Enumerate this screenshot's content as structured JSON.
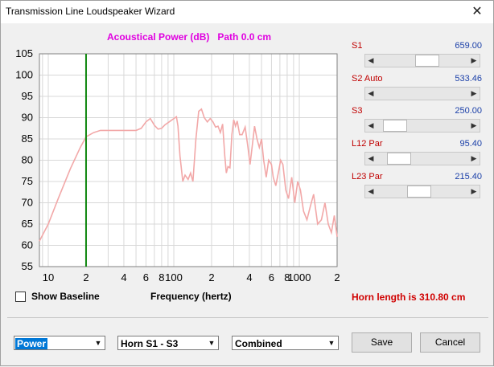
{
  "window": {
    "title": "Transmission Line Loudspeaker Wizard",
    "close_glyph": "✕"
  },
  "plot_title": "Acoustical Power (dB)   Path 0.0 cm",
  "chart_data": {
    "type": "line",
    "x_scale": "log",
    "xlim": [
      8.5,
      2000
    ],
    "ylim": [
      55,
      105
    ],
    "y_ticks": [
      55,
      60,
      65,
      70,
      75,
      80,
      85,
      90,
      95,
      100,
      105
    ],
    "x_tick_labels": [
      {
        "v": 10,
        "t": "10"
      },
      {
        "v": 20,
        "t": "2"
      },
      {
        "v": 40,
        "t": "4"
      },
      {
        "v": 60,
        "t": "6"
      },
      {
        "v": 80,
        "t": "8"
      },
      {
        "v": 100,
        "t": "100"
      },
      {
        "v": 200,
        "t": "2"
      },
      {
        "v": 400,
        "t": "4"
      },
      {
        "v": 600,
        "t": "6"
      },
      {
        "v": 800,
        "t": "8"
      },
      {
        "v": 1000,
        "t": "1000"
      },
      {
        "v": 2000,
        "t": "2"
      }
    ],
    "marker_frequency": 20,
    "grid": true,
    "series": [
      {
        "color": "#f2a8a8",
        "points": [
          [
            8.5,
            61
          ],
          [
            10,
            65
          ],
          [
            12,
            71
          ],
          [
            15,
            78
          ],
          [
            18,
            83
          ],
          [
            20,
            85.5
          ],
          [
            23,
            86.5
          ],
          [
            26,
            87
          ],
          [
            30,
            87
          ],
          [
            40,
            87
          ],
          [
            50,
            87
          ],
          [
            55,
            87.5
          ],
          [
            60,
            89
          ],
          [
            65,
            89.8
          ],
          [
            70,
            88.2
          ],
          [
            75,
            87.3
          ],
          [
            80,
            87.5
          ],
          [
            85,
            88.3
          ],
          [
            95,
            89.3
          ],
          [
            105,
            90.2
          ],
          [
            108,
            88
          ],
          [
            112,
            81
          ],
          [
            118,
            75
          ],
          [
            123,
            76.5
          ],
          [
            130,
            75.5
          ],
          [
            136,
            77
          ],
          [
            142,
            75
          ],
          [
            150,
            85
          ],
          [
            158,
            91.5
          ],
          [
            166,
            92
          ],
          [
            175,
            90
          ],
          [
            185,
            89
          ],
          [
            195,
            89.8
          ],
          [
            205,
            89
          ],
          [
            215,
            87.8
          ],
          [
            225,
            88
          ],
          [
            235,
            86.5
          ],
          [
            245,
            88.5
          ],
          [
            255,
            81
          ],
          [
            262,
            77
          ],
          [
            270,
            78.5
          ],
          [
            280,
            78.2
          ],
          [
            290,
            86
          ],
          [
            300,
            89.5
          ],
          [
            310,
            88
          ],
          [
            320,
            89.2
          ],
          [
            335,
            86
          ],
          [
            350,
            86
          ],
          [
            370,
            87.8
          ],
          [
            390,
            83
          ],
          [
            405,
            79
          ],
          [
            420,
            83
          ],
          [
            440,
            88
          ],
          [
            460,
            85
          ],
          [
            480,
            83
          ],
          [
            500,
            85
          ],
          [
            520,
            80
          ],
          [
            545,
            76
          ],
          [
            570,
            80
          ],
          [
            600,
            79
          ],
          [
            620,
            76
          ],
          [
            650,
            74
          ],
          [
            680,
            77
          ],
          [
            710,
            80
          ],
          [
            740,
            79
          ],
          [
            780,
            73
          ],
          [
            820,
            71
          ],
          [
            870,
            76
          ],
          [
            920,
            70
          ],
          [
            970,
            75
          ],
          [
            1020,
            73
          ],
          [
            1080,
            68
          ],
          [
            1150,
            66
          ],
          [
            1220,
            69
          ],
          [
            1300,
            72
          ],
          [
            1400,
            65
          ],
          [
            1500,
            66
          ],
          [
            1600,
            70
          ],
          [
            1700,
            65
          ],
          [
            1800,
            63
          ],
          [
            1900,
            67
          ],
          [
            2000,
            62
          ]
        ]
      }
    ]
  },
  "controls": [
    {
      "name": "S1",
      "value": "659.00",
      "level": 0.57
    },
    {
      "name": "S2  Auto",
      "value": "533.46",
      "level": null
    },
    {
      "name": "S3",
      "value": "250.00",
      "level": 0.1
    },
    {
      "name": "L12  Par",
      "value": "95.40",
      "level": 0.16
    },
    {
      "name": "L23  Par",
      "value": "215.40",
      "level": 0.45
    }
  ],
  "show_baseline_label": "Show Baseline",
  "xaxis_label": "Frequency (hertz)",
  "horn_length": "Horn length is 310.80 cm",
  "combos": {
    "plot_type": "Power",
    "horn_section": "Horn S1 - S3",
    "mode": "Combined"
  },
  "buttons": {
    "save": "Save",
    "cancel": "Cancel"
  }
}
